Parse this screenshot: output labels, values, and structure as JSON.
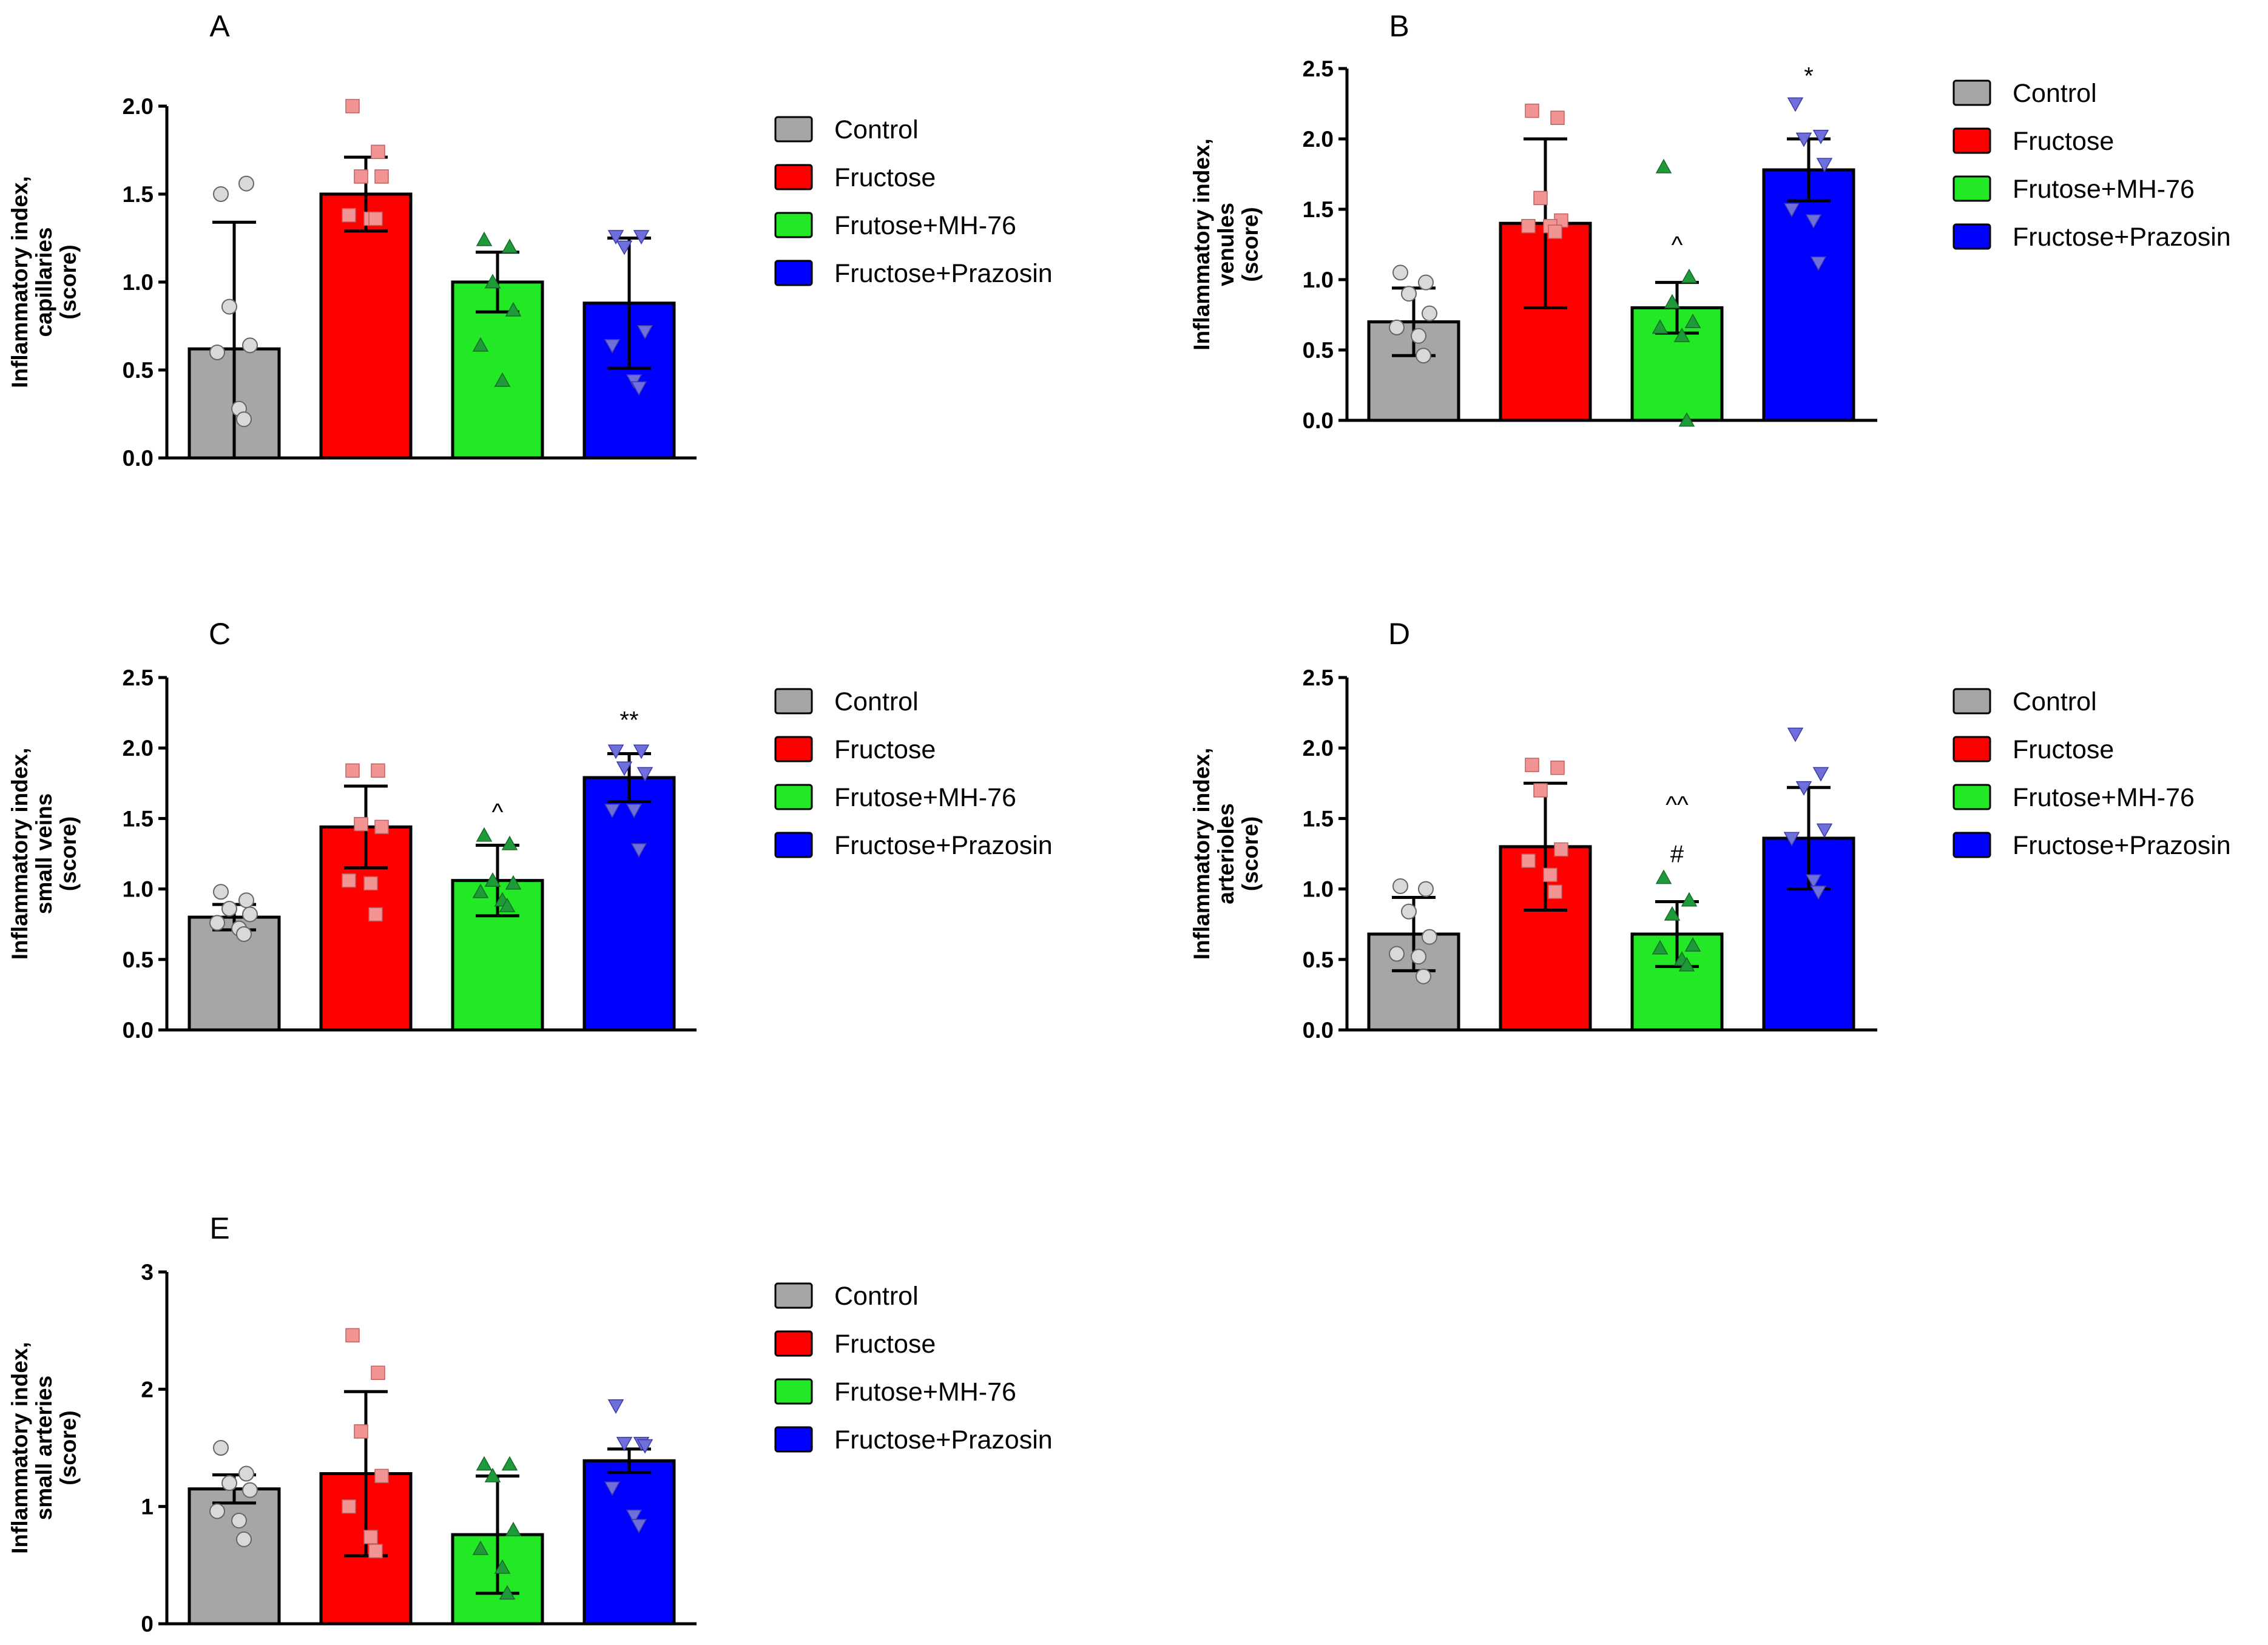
{
  "legend": {
    "entries": [
      {
        "label": "Control",
        "color": "#a6a6a8"
      },
      {
        "label": "Fructose",
        "color": "#ff0000"
      },
      {
        "label": "Frutose+MH-76",
        "color": "#22e826"
      },
      {
        "label": "Fructose+Prazosin",
        "color": "#0000ff"
      }
    ]
  },
  "marker_colors": {
    "Control": "#d9d9d9",
    "Fructose": "#f29494",
    "Frutose+MH-76": "#1f9a3a",
    "Fructose+Prazosin": "#6f6fdc"
  },
  "chart_data": [
    {
      "type": "bar",
      "panel": "A",
      "ylabel_lines": [
        "Inflammatory index,",
        "capillaries",
        "(score)"
      ],
      "ylim": [
        0,
        2.0
      ],
      "yticks": [
        "0.0",
        "0.5",
        "1.0",
        "1.5",
        "2.0"
      ],
      "tick_values": [
        0,
        0.5,
        1.0,
        1.5,
        2.0
      ],
      "categories": [
        "Control",
        "Fructose",
        "Frutose+MH-76",
        "Fructose+Prazosin"
      ],
      "values": [
        0.62,
        1.5,
        1.0,
        0.88
      ],
      "sd": [
        0.72,
        0.21,
        0.17,
        0.37
      ],
      "points": [
        [
          1.5,
          1.56,
          0.86,
          0.64,
          0.6,
          0.28,
          0.22
        ],
        [
          2.0,
          1.74,
          1.6,
          1.6,
          1.38,
          1.36,
          1.36
        ],
        [
          1.24,
          1.2,
          1.0,
          0.84,
          0.64,
          0.44
        ],
        [
          1.26,
          1.26,
          1.2,
          0.72,
          0.64,
          0.44,
          0.4
        ]
      ],
      "annotations": []
    },
    {
      "type": "bar",
      "panel": "B",
      "ylabel_lines": [
        "Inflammatory index,",
        "venules",
        "(score)"
      ],
      "ylim": [
        0,
        2.5
      ],
      "yticks": [
        "0.0",
        "0.5",
        "1.0",
        "1.5",
        "2.0",
        "2.5"
      ],
      "tick_values": [
        0,
        0.5,
        1.0,
        1.5,
        2.0,
        2.5
      ],
      "categories": [
        "Control",
        "Fructose",
        "Frutose+MH-76",
        "Fructose+Prazosin"
      ],
      "values": [
        0.7,
        1.4,
        0.8,
        1.78
      ],
      "sd": [
        0.24,
        0.6,
        0.18,
        0.22
      ],
      "points": [
        [
          1.05,
          0.98,
          0.9,
          0.76,
          0.66,
          0.6,
          0.46
        ],
        [
          2.2,
          2.15,
          1.58,
          1.42,
          1.38,
          1.38,
          1.34
        ],
        [
          1.8,
          1.02,
          0.84,
          0.7,
          0.66,
          0.6,
          0.0
        ],
        [
          2.25,
          2.02,
          2.0,
          1.82,
          1.5,
          1.42,
          1.12
        ]
      ],
      "annotations": [
        {
          "group": 3,
          "text": "*",
          "value": 2.45
        },
        {
          "group": 2,
          "text": "^",
          "value": 1.25
        }
      ]
    },
    {
      "type": "bar",
      "panel": "C",
      "ylabel_lines": [
        "Inflammatory index,",
        "small veins",
        "(score)"
      ],
      "ylim": [
        0,
        2.5
      ],
      "yticks": [
        "0.0",
        "0.5",
        "1.0",
        "1.5",
        "2.0",
        "2.5"
      ],
      "tick_values": [
        0,
        0.5,
        1.0,
        1.5,
        2.0,
        2.5
      ],
      "categories": [
        "Control",
        "Fructose",
        "Frutose+MH-76",
        "Fructose+Prazosin"
      ],
      "values": [
        0.8,
        1.44,
        1.06,
        1.79
      ],
      "sd": [
        0.09,
        0.29,
        0.25,
        0.17
      ],
      "points": [
        [
          0.98,
          0.92,
          0.86,
          0.82,
          0.76,
          0.72,
          0.68
        ],
        [
          1.84,
          1.84,
          1.46,
          1.44,
          1.06,
          1.04,
          0.82
        ],
        [
          1.38,
          1.32,
          1.06,
          1.04,
          0.98,
          0.92,
          0.88
        ],
        [
          1.98,
          1.98,
          1.86,
          1.82,
          1.56,
          1.56,
          1.28
        ]
      ],
      "annotations": [
        {
          "group": 3,
          "text": "**",
          "value": 2.2
        },
        {
          "group": 2,
          "text": "^",
          "value": 1.55
        }
      ]
    },
    {
      "type": "bar",
      "panel": "D",
      "ylabel_lines": [
        "Inflammatory index,",
        "arterioles",
        "(score)"
      ],
      "ylim": [
        0,
        2.5
      ],
      "yticks": [
        "0.0",
        "0.5",
        "1.0",
        "1.5",
        "2.0",
        "2.5"
      ],
      "tick_values": [
        0,
        0.5,
        1.0,
        1.5,
        2.0,
        2.5
      ],
      "categories": [
        "Control",
        "Fructose",
        "Frutose+MH-76",
        "Fructose+Prazosin"
      ],
      "values": [
        0.68,
        1.3,
        0.68,
        1.36
      ],
      "sd": [
        0.26,
        0.45,
        0.23,
        0.36
      ],
      "points": [
        [
          1.02,
          1.0,
          0.84,
          0.66,
          0.54,
          0.52,
          0.38
        ],
        [
          1.88,
          1.86,
          1.7,
          1.28,
          1.2,
          1.1,
          0.98
        ],
        [
          1.08,
          0.92,
          0.82,
          0.6,
          0.58,
          0.5,
          0.46
        ],
        [
          2.1,
          1.82,
          1.72,
          1.42,
          1.36,
          1.06,
          0.98
        ]
      ],
      "annotations": [
        {
          "group": 2,
          "text": "^^",
          "value": 1.6
        },
        {
          "group": 2,
          "text": "#",
          "value": 1.25
        }
      ]
    },
    {
      "type": "bar",
      "panel": "E",
      "ylabel_lines": [
        "Inflammatory index,",
        "small arteries",
        "(score)"
      ],
      "ylim": [
        0,
        3
      ],
      "yticks": [
        "0",
        "1",
        "2",
        "3"
      ],
      "tick_values": [
        0,
        1,
        2,
        3
      ],
      "categories": [
        "Control",
        "Fructose",
        "Frutose+MH-76",
        "Fructose+Prazosin"
      ],
      "values": [
        1.15,
        1.28,
        0.76,
        1.39
      ],
      "sd": [
        0.12,
        0.7,
        0.5,
        0.1
      ],
      "points": [
        [
          1.5,
          1.28,
          1.2,
          1.14,
          0.96,
          0.88,
          0.72
        ],
        [
          2.46,
          2.14,
          1.64,
          1.26,
          1.0,
          0.74,
          0.62
        ],
        [
          1.36,
          1.36,
          1.26,
          0.8,
          0.64,
          0.48,
          0.26
        ],
        [
          1.86,
          1.54,
          1.54,
          1.52,
          1.16,
          0.92,
          0.84
        ]
      ],
      "annotations": []
    }
  ]
}
